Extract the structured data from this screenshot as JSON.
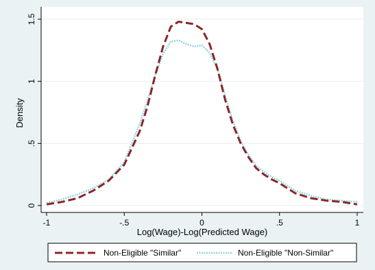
{
  "chart_data": {
    "type": "line",
    "title": "",
    "xlabel": "Log(Wage)-Log(Predicted Wage)",
    "ylabel": "Density",
    "xlim": [
      -1,
      1
    ],
    "ylim": [
      0,
      1.5
    ],
    "x_ticks": [
      -1,
      -0.5,
      0,
      0.5,
      1
    ],
    "x_tick_labels": [
      "-1",
      "-.5",
      "0",
      ".5",
      "1"
    ],
    "y_ticks": [
      0,
      0.5,
      1,
      1.5
    ],
    "y_tick_labels": [
      "0",
      ".5",
      "1",
      "1.5"
    ],
    "grid": "horizontal",
    "legend_position": "bottom",
    "series": [
      {
        "name": "Non-Eligible \"Similar\"",
        "color": "#8b2525",
        "style": "dashed",
        "x": [
          -1.0,
          -0.9,
          -0.8,
          -0.7,
          -0.6,
          -0.5,
          -0.4,
          -0.35,
          -0.3,
          -0.25,
          -0.2,
          -0.15,
          -0.1,
          -0.05,
          0.0,
          0.05,
          0.1,
          0.15,
          0.2,
          0.25,
          0.3,
          0.35,
          0.4,
          0.45,
          0.5,
          0.6,
          0.7,
          0.8,
          0.9,
          1.0
        ],
        "values": [
          0.01,
          0.03,
          0.06,
          0.12,
          0.2,
          0.33,
          0.6,
          0.8,
          1.05,
          1.28,
          1.44,
          1.48,
          1.47,
          1.46,
          1.42,
          1.3,
          1.1,
          0.85,
          0.65,
          0.5,
          0.39,
          0.3,
          0.25,
          0.21,
          0.18,
          0.1,
          0.06,
          0.04,
          0.03,
          0.01
        ]
      },
      {
        "name": "Non-Eligible \"Non-Similar\"",
        "color": "#8fd3e0",
        "style": "dotted",
        "x": [
          -1.0,
          -0.9,
          -0.8,
          -0.7,
          -0.6,
          -0.5,
          -0.4,
          -0.35,
          -0.3,
          -0.25,
          -0.2,
          -0.15,
          -0.1,
          -0.05,
          0.0,
          0.05,
          0.1,
          0.15,
          0.2,
          0.25,
          0.3,
          0.35,
          0.4,
          0.45,
          0.5,
          0.6,
          0.7,
          0.8,
          0.9,
          1.0
        ],
        "values": [
          0.02,
          0.05,
          0.09,
          0.14,
          0.21,
          0.35,
          0.66,
          0.85,
          1.05,
          1.22,
          1.32,
          1.33,
          1.3,
          1.28,
          1.29,
          1.23,
          1.1,
          0.88,
          0.68,
          0.52,
          0.41,
          0.32,
          0.27,
          0.23,
          0.2,
          0.12,
          0.08,
          0.05,
          0.04,
          0.03
        ]
      }
    ]
  }
}
